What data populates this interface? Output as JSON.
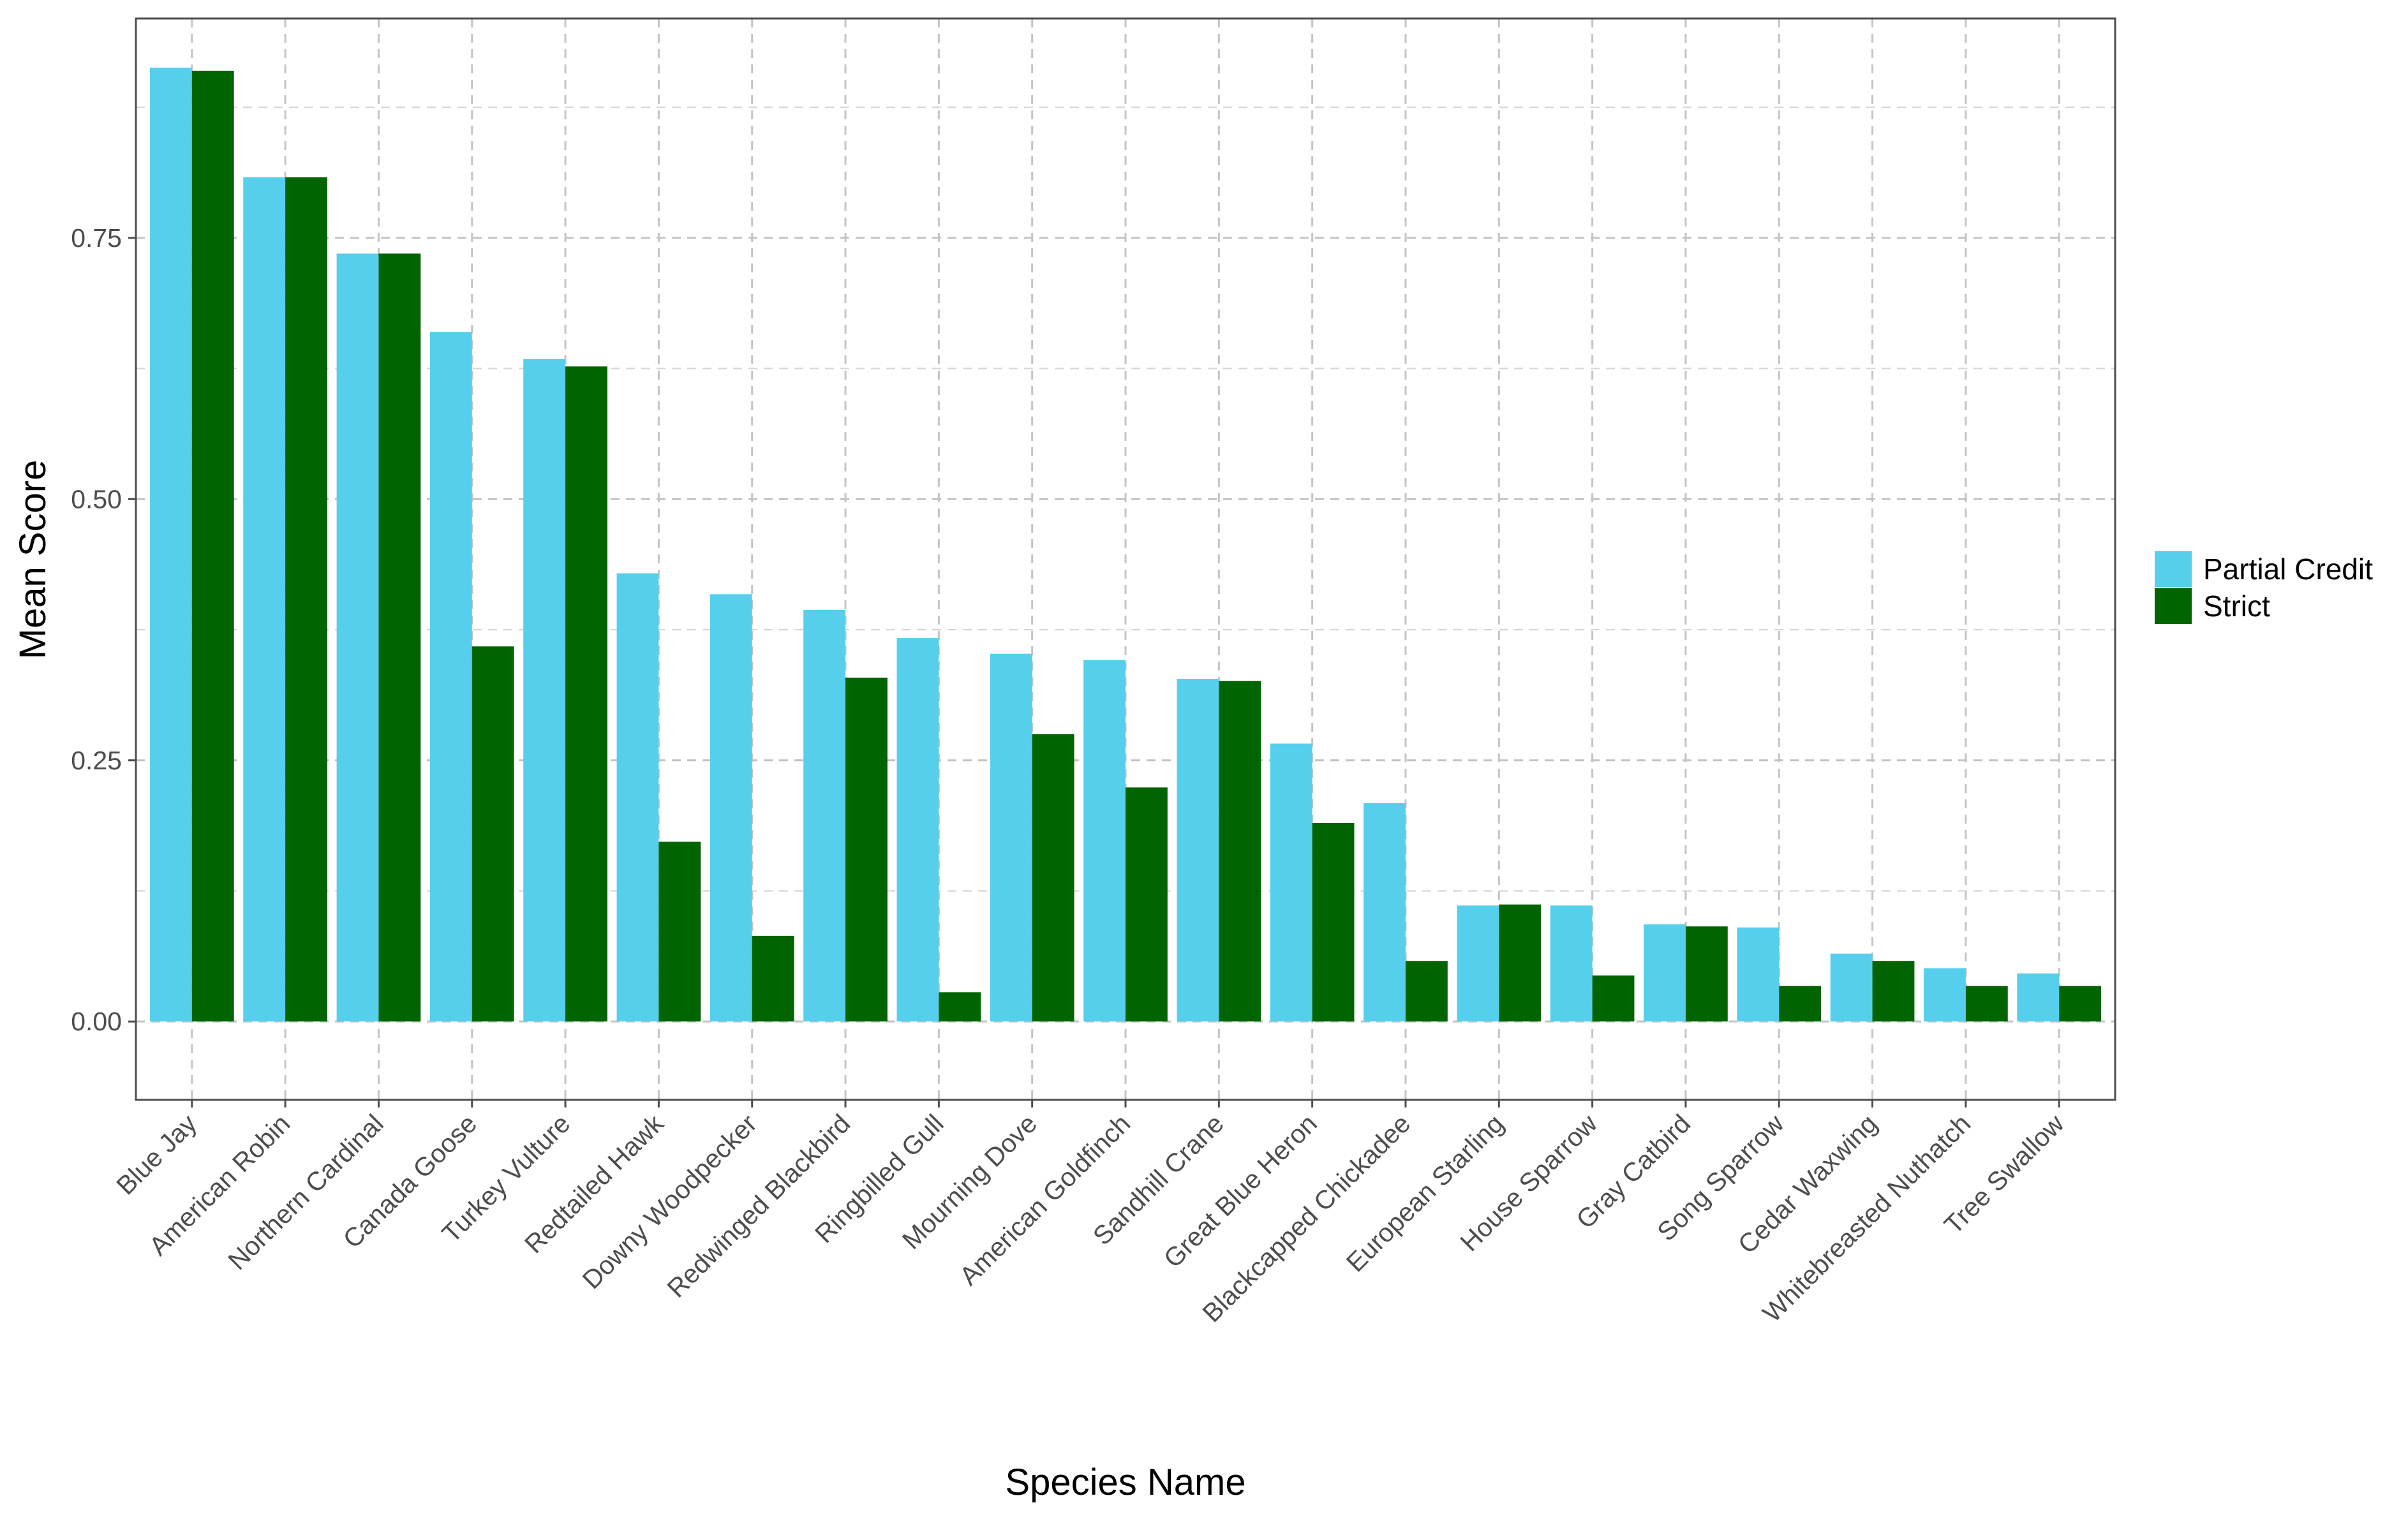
{
  "chart_data": {
    "type": "bar",
    "title": "",
    "xlabel": "Species Name",
    "ylabel": "Mean Score",
    "ylim": [
      -0.075,
      0.96
    ],
    "y_ticks": [
      "0.00",
      "0.25",
      "0.50",
      "0.75"
    ],
    "y_tick_values": [
      0,
      0.25,
      0.5,
      0.75
    ],
    "grid": true,
    "legend_position": "right",
    "categories": [
      "Blue Jay",
      "American Robin",
      "Northern Cardinal",
      "Canada Goose",
      "Turkey Vulture",
      "Redtailed Hawk",
      "Downy Woodpecker",
      "Redwinged Blackbird",
      "Ringbilled Gull",
      "Mourning Dove",
      "American Goldfinch",
      "Sandhill Crane",
      "Great Blue Heron",
      "Blackcapped Chickadee",
      "European Starling",
      "House Sparrow",
      "Gray Catbird",
      "Song Sparrow",
      "Cedar Waxwing",
      "Whitebreasted Nuthatch",
      "Tree Swallow"
    ],
    "series": [
      {
        "name": "Partial Credit",
        "color": "#56cfed",
        "values": [
          0.913,
          0.808,
          0.735,
          0.66,
          0.634,
          0.429,
          0.409,
          0.394,
          0.367,
          0.352,
          0.346,
          0.328,
          0.266,
          0.209,
          0.111,
          0.111,
          0.093,
          0.09,
          0.065,
          0.051,
          0.046
        ]
      },
      {
        "name": "Strict",
        "color": "#006400",
        "values": [
          0.91,
          0.808,
          0.735,
          0.359,
          0.627,
          0.172,
          0.082,
          0.329,
          0.028,
          0.275,
          0.224,
          0.326,
          0.19,
          0.058,
          0.112,
          0.044,
          0.091,
          0.034,
          0.058,
          0.034,
          0.034
        ]
      }
    ]
  }
}
